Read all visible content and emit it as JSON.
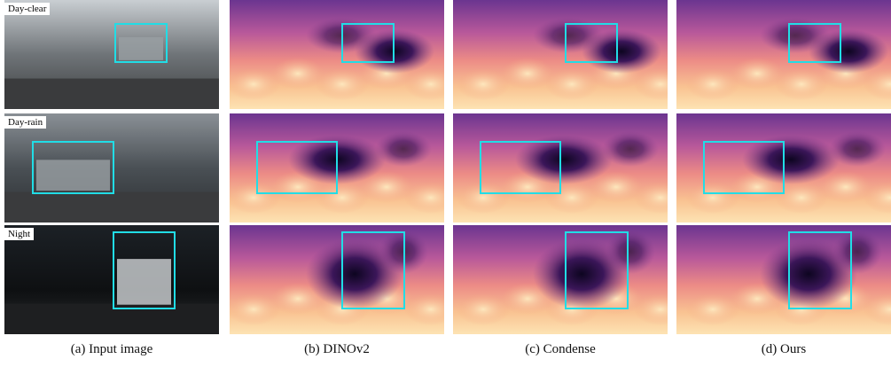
{
  "figure": {
    "rows": [
      {
        "label": "Day-clear"
      },
      {
        "label": "Day-rain"
      },
      {
        "label": "Night"
      }
    ],
    "captions": [
      "(a) Input image",
      "(b) DINOv2",
      "(c) Condense",
      "(d) Ours"
    ]
  }
}
